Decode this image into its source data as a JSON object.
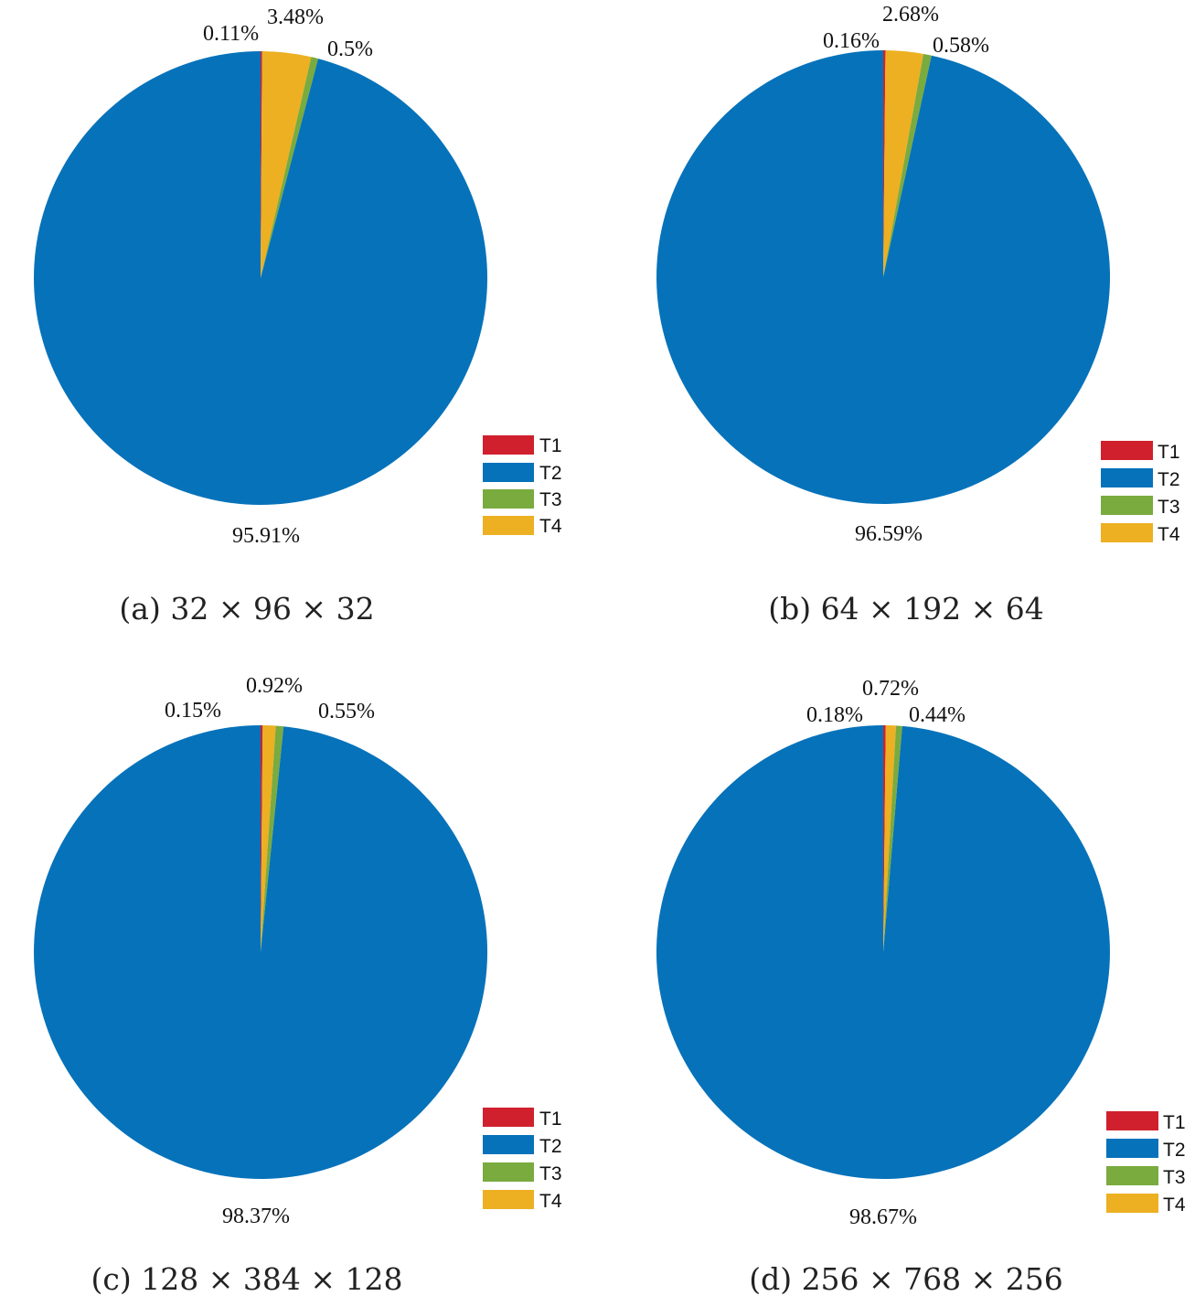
{
  "legend_labels": [
    "T1",
    "T2",
    "T3",
    "T4"
  ],
  "colors": {
    "T1": "#d0202e",
    "T2": "#0672ba",
    "T3": "#79ab3f",
    "T4": "#ecb022"
  },
  "chart_data": [
    {
      "type": "pie",
      "caption": "(a) 32 × 96 × 32",
      "labels": [
        "T1",
        "T2",
        "T3",
        "T4"
      ],
      "values": [
        0.11,
        95.91,
        0.5,
        3.48
      ],
      "value_labels": [
        "0.11%",
        "95.91%",
        "0.5%",
        "3.48%"
      ],
      "legend_position": "lower-right"
    },
    {
      "type": "pie",
      "caption": "(b) 64 × 192 × 64",
      "labels": [
        "T1",
        "T2",
        "T3",
        "T4"
      ],
      "values": [
        0.16,
        96.59,
        0.58,
        2.68
      ],
      "value_labels": [
        "0.16%",
        "96.59%",
        "0.58%",
        "2.68%"
      ],
      "legend_position": "lower-right"
    },
    {
      "type": "pie",
      "caption": "(c) 128 × 384 × 128",
      "labels": [
        "T1",
        "T2",
        "T3",
        "T4"
      ],
      "values": [
        0.15,
        98.37,
        0.55,
        0.92
      ],
      "value_labels": [
        "0.15%",
        "98.37%",
        "0.55%",
        "0.92%"
      ],
      "legend_position": "lower-right"
    },
    {
      "type": "pie",
      "caption": "(d) 256 × 768 × 256",
      "labels": [
        "T1",
        "T2",
        "T3",
        "T4"
      ],
      "values": [
        0.18,
        98.67,
        0.44,
        0.72
      ],
      "value_labels": [
        "0.18%",
        "98.67%",
        "0.44%",
        "0.72%"
      ],
      "legend_position": "lower-right"
    }
  ]
}
